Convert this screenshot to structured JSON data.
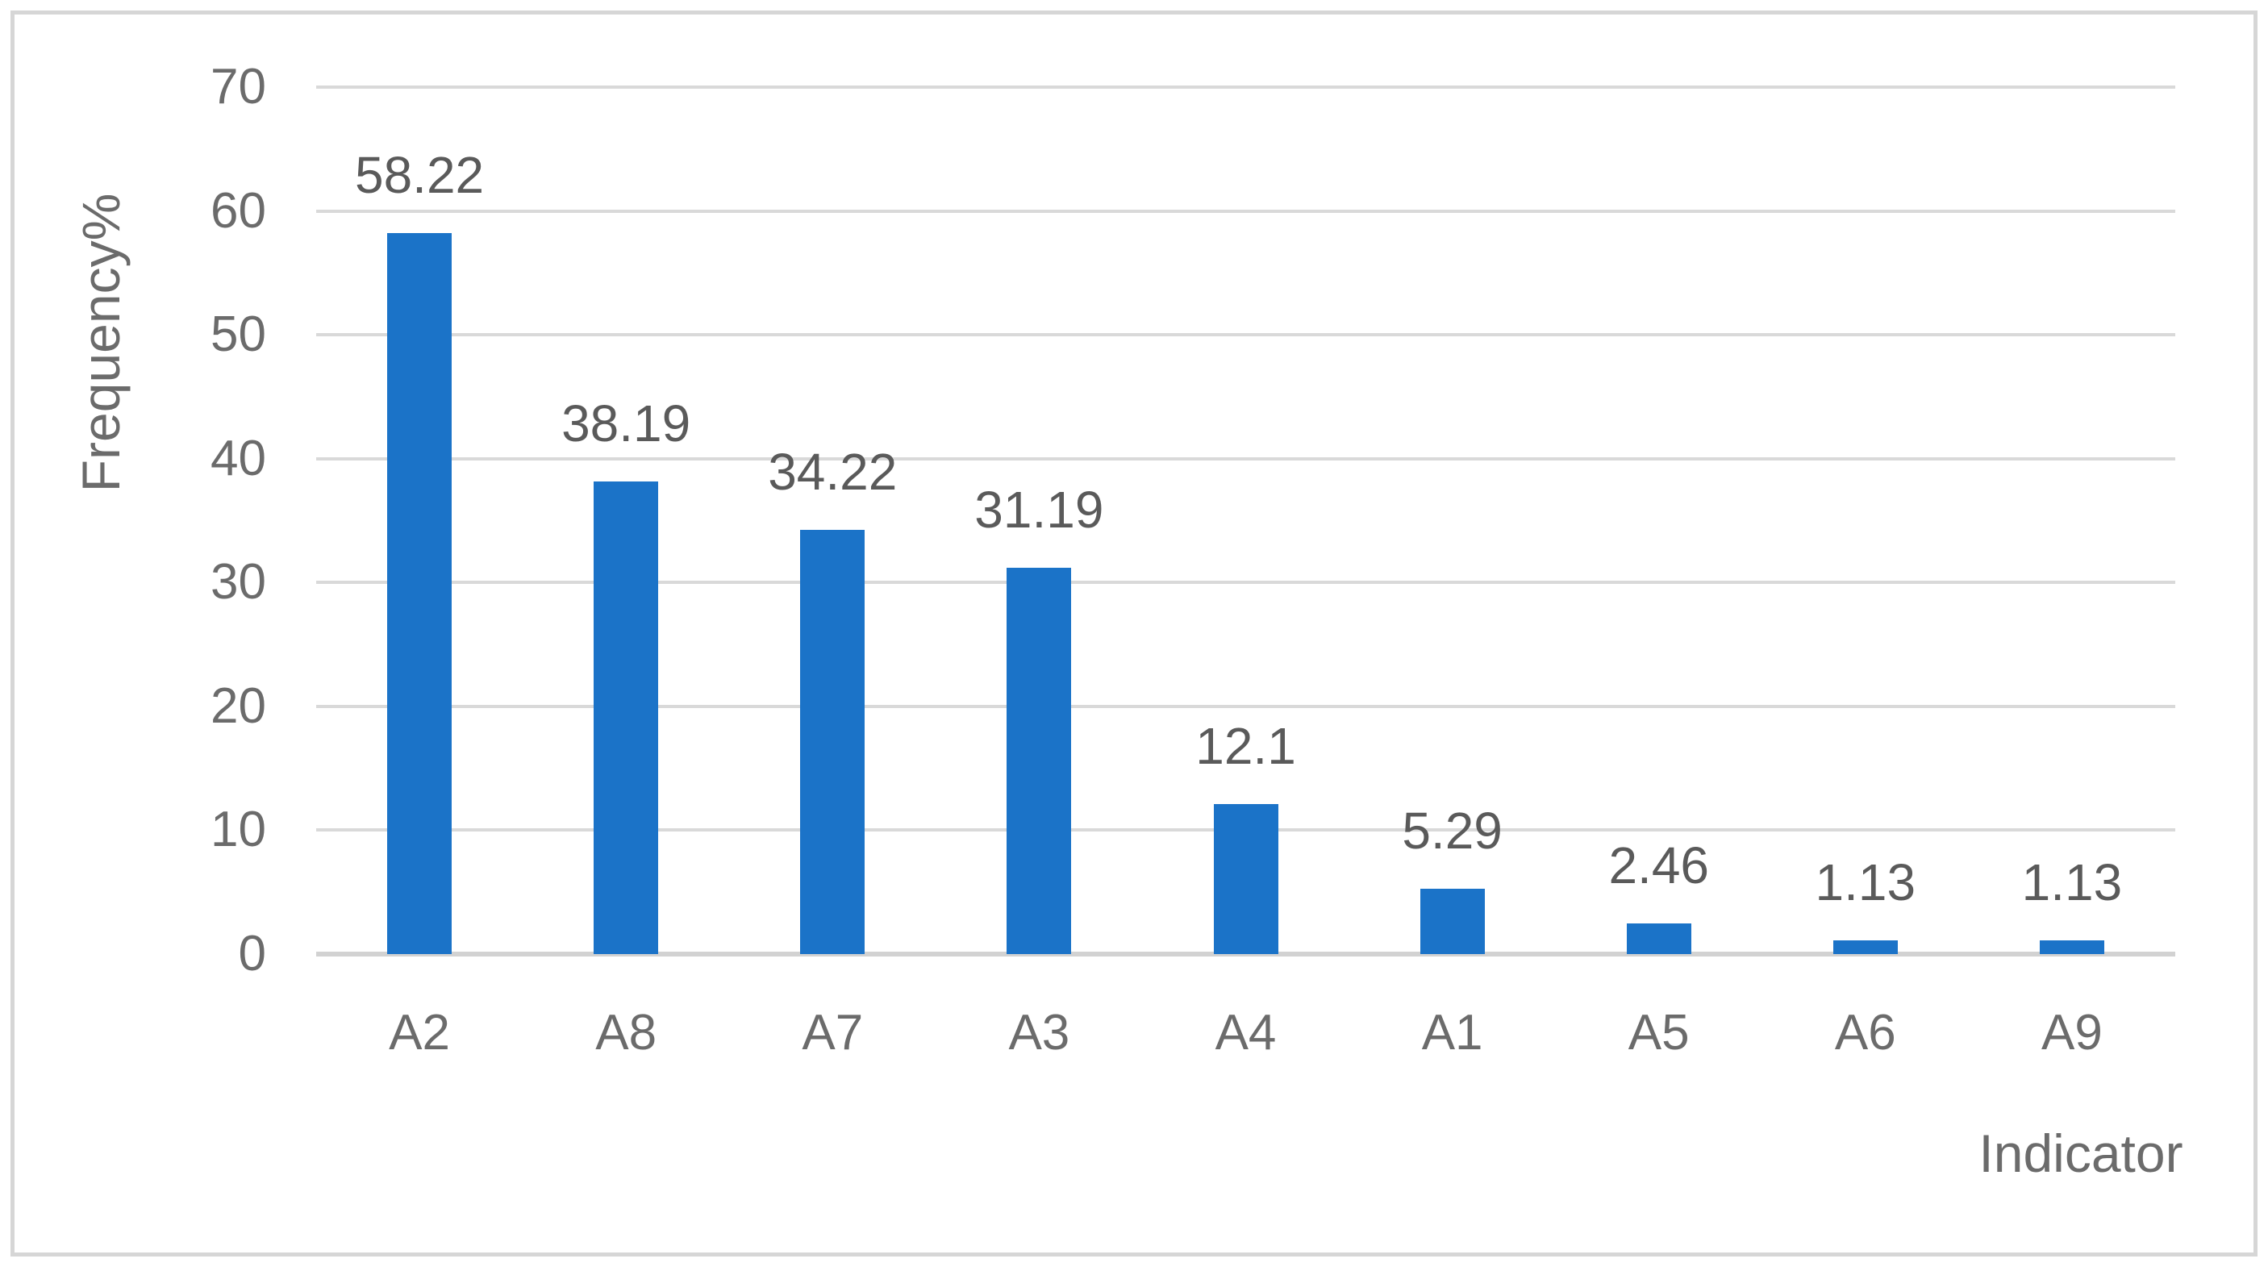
{
  "chart_data": {
    "type": "bar",
    "categories": [
      "A2",
      "A8",
      "A7",
      "A3",
      "A4",
      "A1",
      "A5",
      "A6",
      "A9"
    ],
    "values": [
      58.22,
      38.19,
      34.22,
      31.19,
      12.1,
      5.29,
      2.46,
      1.13,
      1.13
    ],
    "bar_labels": [
      "58.22",
      "38.19",
      "34.22",
      "31.19",
      "12.1",
      "5.29",
      "2.46",
      "1.13",
      "1.13"
    ],
    "title": "",
    "xlabel": "Indicator",
    "ylabel": "Frequency%",
    "ylim": [
      0,
      70
    ],
    "yticks": [
      0,
      10,
      20,
      30,
      40,
      50,
      60,
      70
    ],
    "grid": true,
    "legend": false,
    "colors": {
      "bar": "#1b73c8",
      "gridline": "#d9d9d9",
      "axis_line": "#d2d2d2",
      "frame_border": "#d6d6d6",
      "axis_text": "#6b6b6b",
      "data_label_text": "#5a5a5a",
      "background": "#ffffff"
    }
  }
}
